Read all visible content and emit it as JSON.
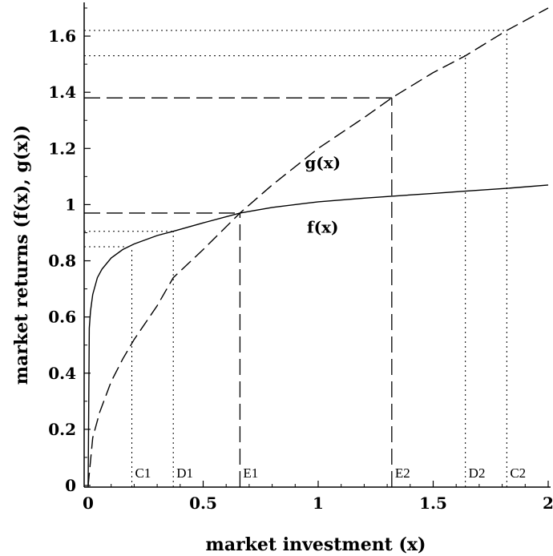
{
  "chart_data": {
    "type": "line",
    "xlabel": "market investment (x)",
    "ylabel": "market returns (f(x), g(x))",
    "xlim": [
      0,
      2
    ],
    "ylim": [
      0,
      1.7
    ],
    "x_ticks": [
      0,
      0.5,
      1,
      1.5,
      2
    ],
    "x_tick_labels": [
      "0",
      "0.5",
      "1",
      "1.5",
      "2"
    ],
    "y_ticks": [
      0,
      0.2,
      0.4,
      0.6,
      0.8,
      1,
      1.2,
      1.4,
      1.6
    ],
    "y_tick_labels": [
      "0",
      "0.2",
      "0.4",
      "0.6",
      "0.8",
      "1",
      "1.2",
      "1.4",
      "1.6"
    ],
    "grid": false,
    "series": [
      {
        "name": "f(x)",
        "style": "solid",
        "color": "#000000",
        "x": [
          0,
          0.005,
          0.01,
          0.02,
          0.04,
          0.06,
          0.1,
          0.15,
          0.2,
          0.3,
          0.37,
          0.5,
          0.66,
          0.8,
          1.0,
          1.2,
          1.32,
          1.5,
          1.64,
          1.82,
          2.0
        ],
        "y": [
          0,
          0.56,
          0.62,
          0.68,
          0.74,
          0.77,
          0.81,
          0.84,
          0.86,
          0.89,
          0.905,
          0.935,
          0.97,
          0.99,
          1.01,
          1.023,
          1.03,
          1.04,
          1.048,
          1.058,
          1.07
        ]
      },
      {
        "name": "g(x)",
        "style": "dashed",
        "color": "#000000",
        "x": [
          0,
          0.02,
          0.05,
          0.1,
          0.15,
          0.2,
          0.3,
          0.37,
          0.5,
          0.66,
          0.8,
          1.0,
          1.2,
          1.32,
          1.5,
          1.64,
          1.82,
          2.0
        ],
        "y": [
          0,
          0.17,
          0.26,
          0.37,
          0.45,
          0.52,
          0.64,
          0.74,
          0.84,
          0.97,
          1.07,
          1.2,
          1.31,
          1.38,
          1.47,
          1.53,
          1.62,
          1.7
        ]
      }
    ],
    "curve_labels": [
      {
        "text": "g(x)",
        "x": 1.02,
        "y": 1.13
      },
      {
        "text": "f(x)",
        "x": 1.02,
        "y": 0.9
      }
    ],
    "reference_lines": [
      {
        "label": "C1",
        "x": 0.19,
        "y": 0.85,
        "style": "dotted"
      },
      {
        "label": "D1",
        "x": 0.37,
        "y": 0.905,
        "style": "dotted"
      },
      {
        "label": "E1",
        "x": 0.66,
        "y": 0.97,
        "style": "dashed"
      },
      {
        "label": "E2",
        "x": 1.32,
        "y": 1.38,
        "style": "dashed"
      },
      {
        "label": "D2",
        "x": 1.64,
        "y": 1.53,
        "style": "dotted"
      },
      {
        "label": "C2",
        "x": 1.82,
        "y": 1.62,
        "style": "dotted"
      }
    ]
  }
}
